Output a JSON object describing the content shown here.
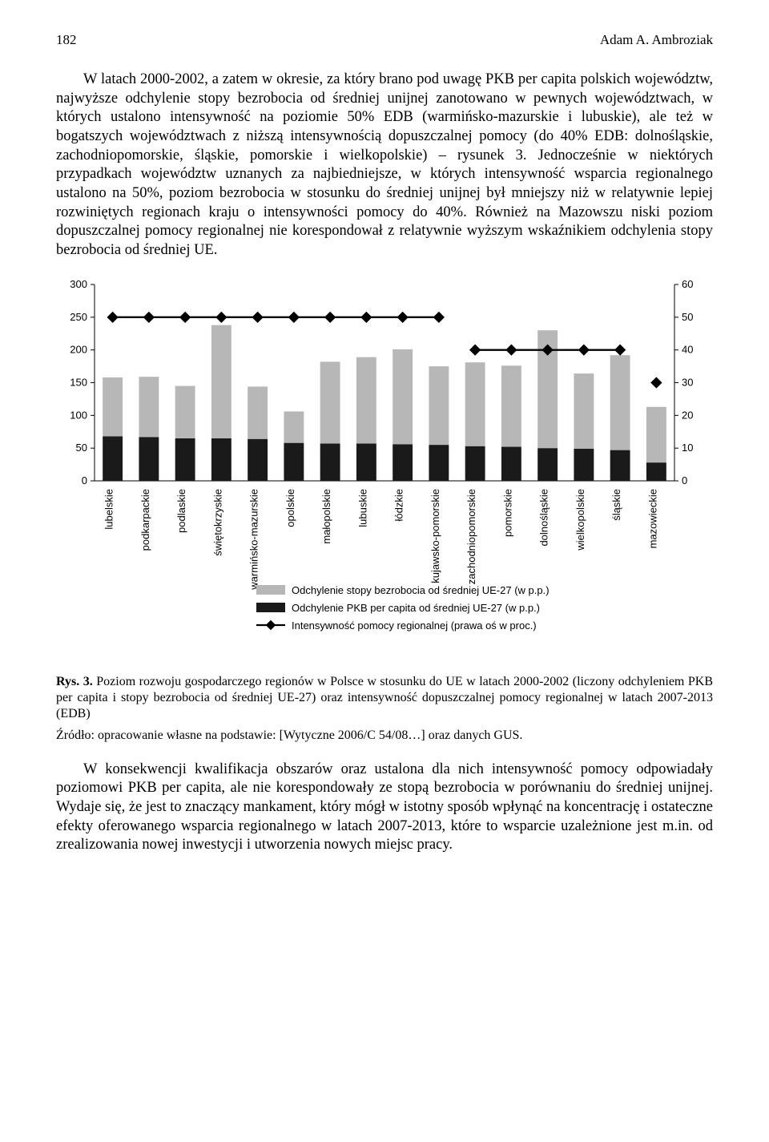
{
  "header": {
    "page_number": "182",
    "running_head": "Adam A. Ambroziak"
  },
  "paragraph1": "W latach 2000-2002, a zatem w okresie, za który brano pod uwagę PKB per capita polskich województw, najwyższe odchylenie stopy bezrobocia od średniej unijnej zanotowano w pewnych województwach, w których ustalono intensywność na poziomie 50% EDB (warmińsko-mazurskie i lubuskie), ale też w bogatszych województwach z niższą intensywnością dopuszczalnej pomocy (do 40% EDB: dolnośląskie, zachodniopomorskie, śląskie, pomorskie i wielkopolskie) – rysunek 3. Jednocześnie w niektórych przypadkach województw uznanych za najbiedniejsze, w których intensywność wsparcia regionalnego ustalono na 50%, poziom bezrobocia w stosunku do średniej unijnej był mniejszy niż w relatywnie lepiej rozwiniętych regionach kraju o intensywności pomocy do 40%. Również na Mazowszu niski poziom dopuszczalnej pomocy regionalnej nie korespondował z relatywnie wyższym wskaźnikiem odchylenia stopy bezrobocia od średniej UE.",
  "chart": {
    "type": "stacked-bar-with-line-markers",
    "background_color": "#ffffff",
    "axis_color": "#000000",
    "colors": {
      "series_bottom": "#1a1a1a",
      "series_top": "#b7b7b7",
      "marker": "#000000",
      "marker_line": "#000000"
    },
    "categories": [
      "lubelskie",
      "podkarpackie",
      "podlaskie",
      "świętokrzyskie",
      "warmińsko-mazurskie",
      "opolskie",
      "małopolskie",
      "lubuskie",
      "łódzkie",
      "kujawsko-pomorskie",
      "zachodniopomorskie",
      "pomorskie",
      "dolnośląskie",
      "wielkopolskie",
      "śląskie",
      "mazowieckie"
    ],
    "series_bottom_label": "Odchylenie PKB per capita od średniej UE-27 (w p.p.)",
    "series_bottom_values": [
      68,
      67,
      65,
      65,
      64,
      58,
      57,
      57,
      56,
      55,
      53,
      52,
      50,
      49,
      47,
      28
    ],
    "series_top_label": "Odchylenie stopy bezrobocia od średniej UE-27 (w p.p.)",
    "series_top_values": [
      90,
      92,
      80,
      173,
      80,
      48,
      125,
      132,
      145,
      120,
      128,
      124,
      180,
      115,
      145,
      85
    ],
    "marker_label": "Intensywność pomocy regionalnej (prawa oś w proc.)",
    "marker_values": [
      50,
      50,
      50,
      50,
      50,
      50,
      50,
      50,
      50,
      50,
      40,
      40,
      40,
      40,
      40,
      30
    ],
    "left_axis": {
      "min": 0,
      "max": 300,
      "step": 50
    },
    "right_axis": {
      "min": 0,
      "max": 60,
      "step": 10
    },
    "bar_width_ratio": 0.55,
    "marker_size": 10
  },
  "caption": {
    "lead": "Rys. 3.",
    "text": " Poziom rozwoju gospodarczego regionów w Polsce w stosunku do UE w latach 2000-2002 (liczony odchyleniem PKB per capita i stopy bezrobocia od średniej UE-27) oraz intensywność dopuszczalnej pomocy regionalnej w latach 2007-2013 (EDB)"
  },
  "source": "Źródło: opracowanie własne na podstawie: [Wytyczne 2006/C 54/08…] oraz danych GUS.",
  "paragraph2": "W konsekwencji kwalifikacja obszarów oraz ustalona dla nich intensywność pomocy odpowiadały poziomowi PKB per capita, ale nie korespondowały ze stopą bezrobocia w porównaniu do średniej unijnej. Wydaje się, że jest to znaczący mankament, który mógł w istotny sposób wpłynąć na koncentrację i ostateczne efekty oferowanego wsparcia regionalnego w latach 2007-2013, które to wsparcie uzależnione jest m.in. od zrealizowania nowej inwestycji i utworzenia nowych miejsc pracy."
}
